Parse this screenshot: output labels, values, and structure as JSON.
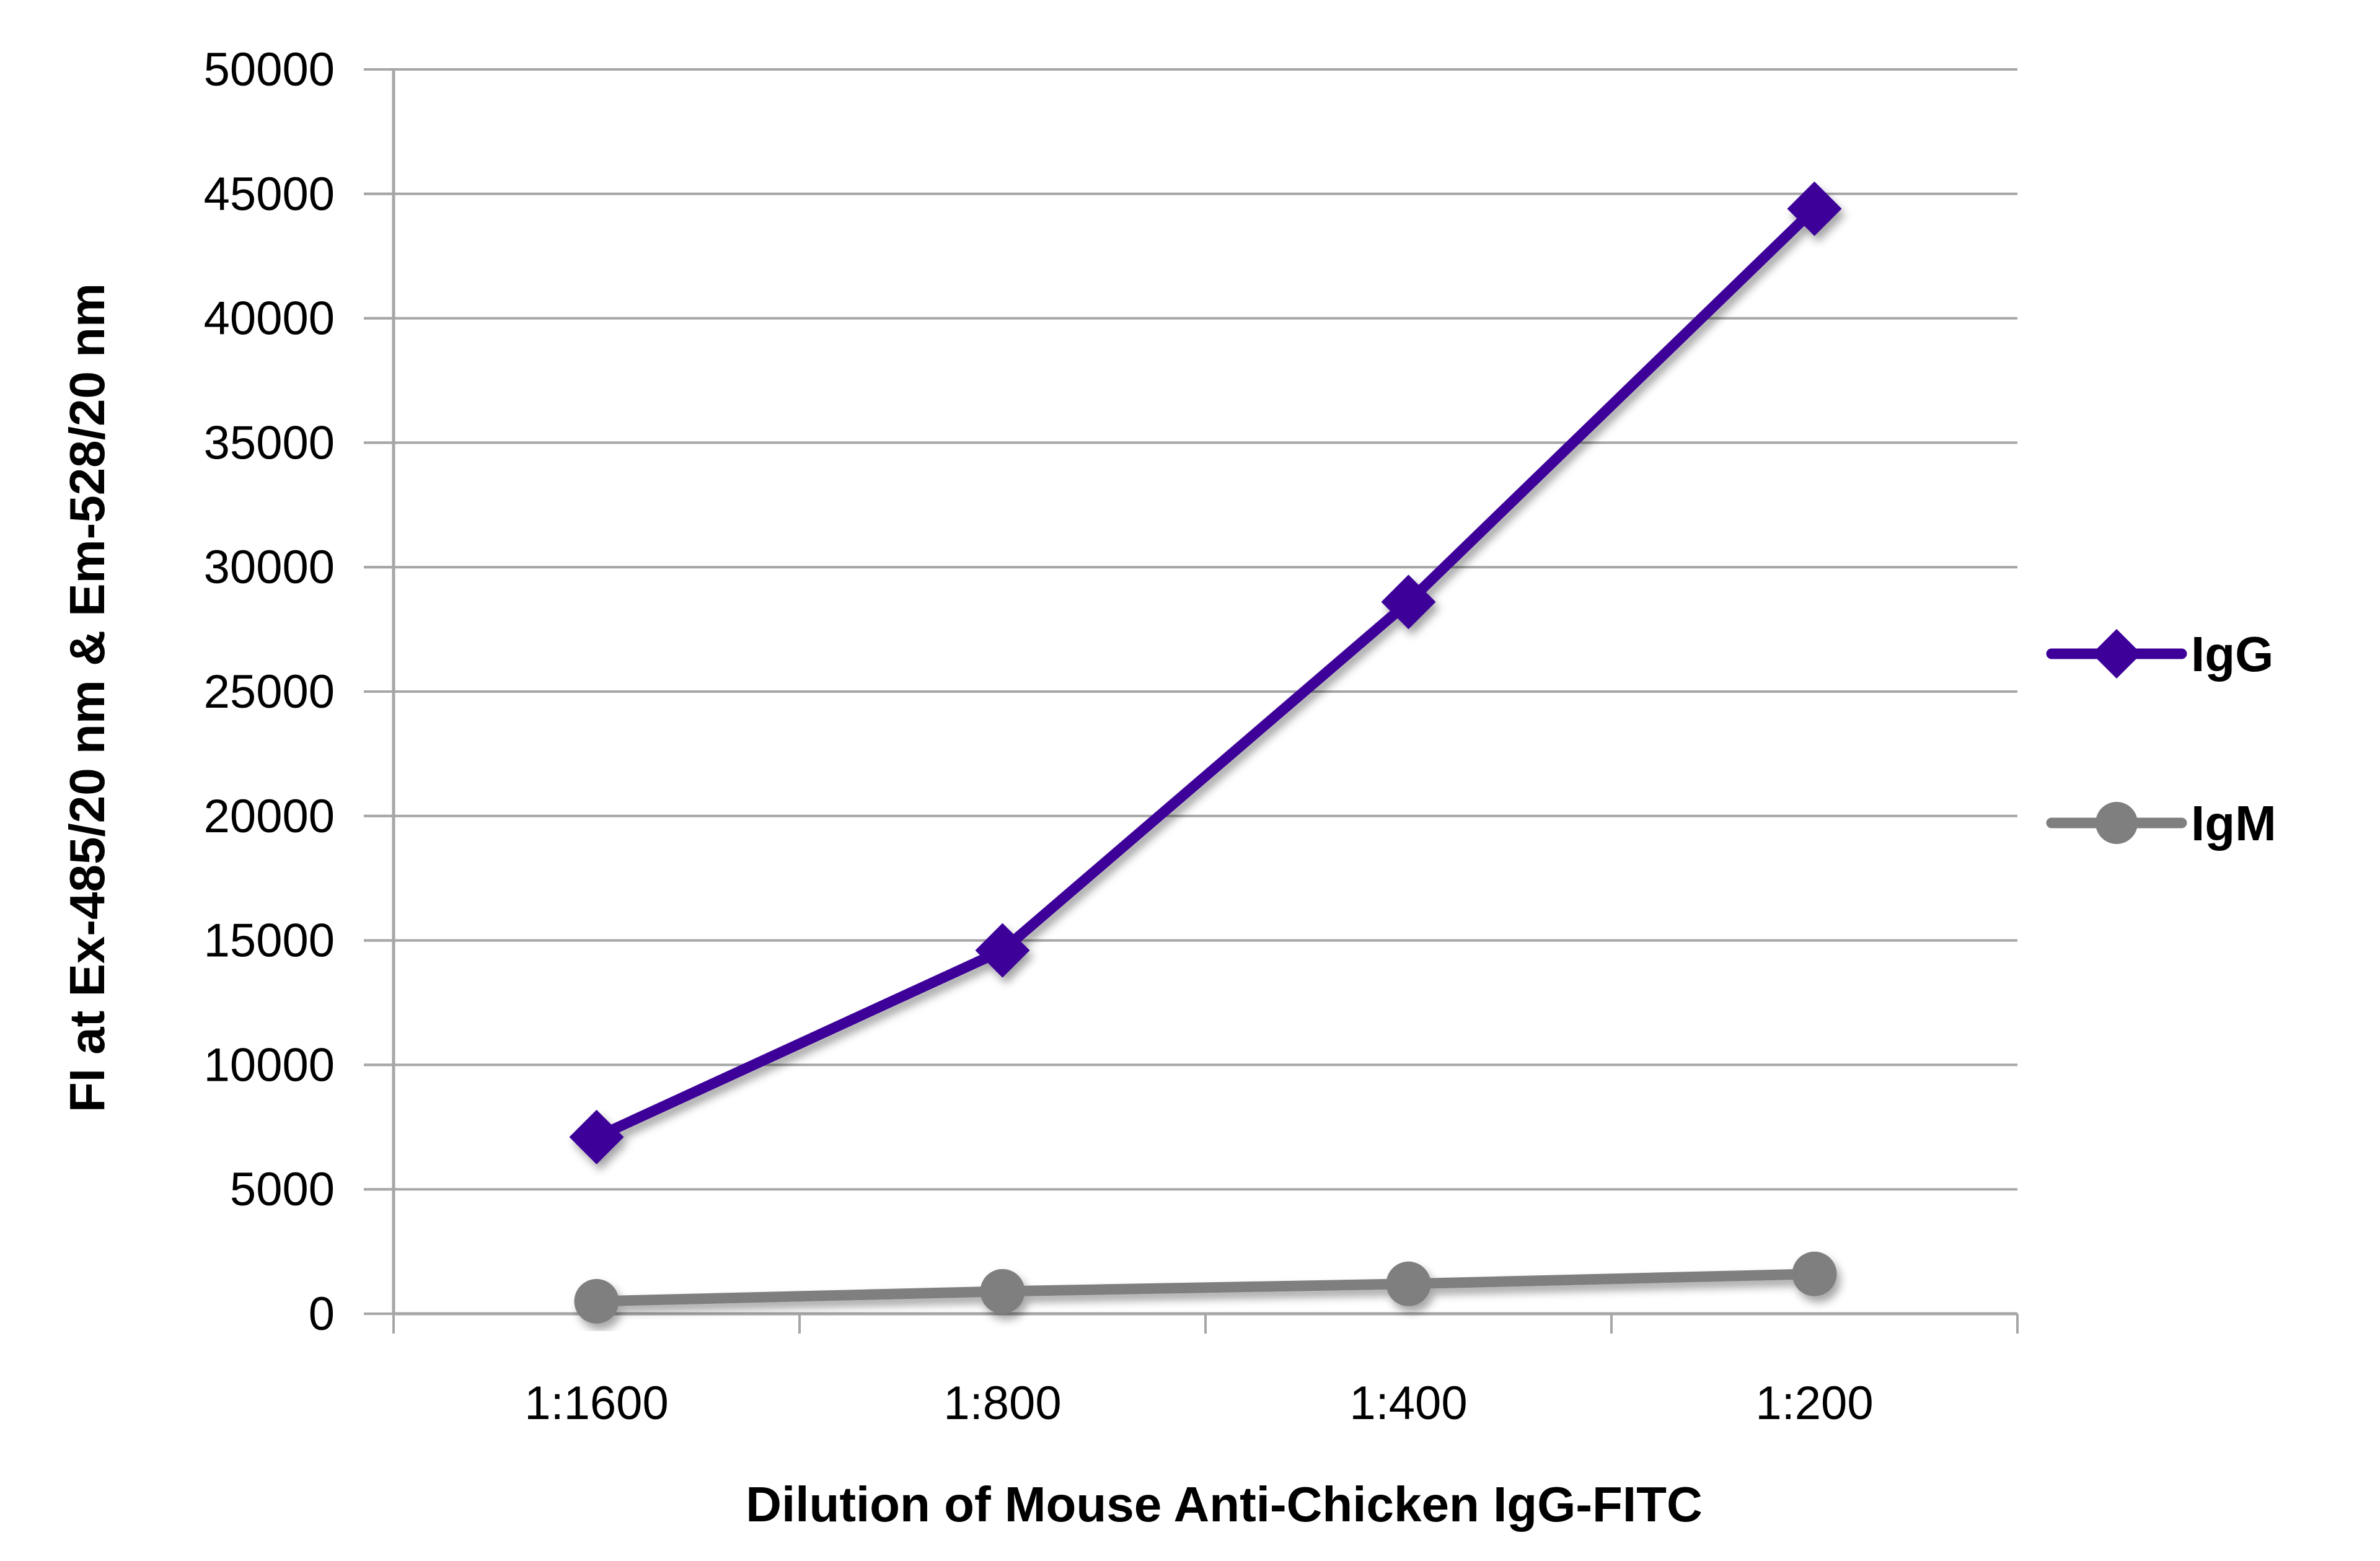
{
  "chart_data": {
    "type": "line",
    "title": "",
    "xlabel": "Dilution of Mouse Anti-Chicken IgG-FITC",
    "ylabel": "FI at Ex-485/20 nm & Em-528/20 nm",
    "categories": [
      "1:1600",
      "1:800",
      "1:400",
      "1:200"
    ],
    "ylim": [
      0,
      50000
    ],
    "yticks": [
      "0",
      "5000",
      "10000",
      "15000",
      "20000",
      "25000",
      "30000",
      "35000",
      "40000",
      "45000",
      "50000"
    ],
    "grid": true,
    "legend_position": "right",
    "series": [
      {
        "name": "IgG",
        "values": [
          7100,
          14600,
          28600,
          44400
        ],
        "color": "#3d0099",
        "marker": "diamond"
      },
      {
        "name": "IgM",
        "values": [
          500,
          900,
          1200,
          1600
        ],
        "color": "#7f7f7f",
        "marker": "circle"
      }
    ]
  }
}
